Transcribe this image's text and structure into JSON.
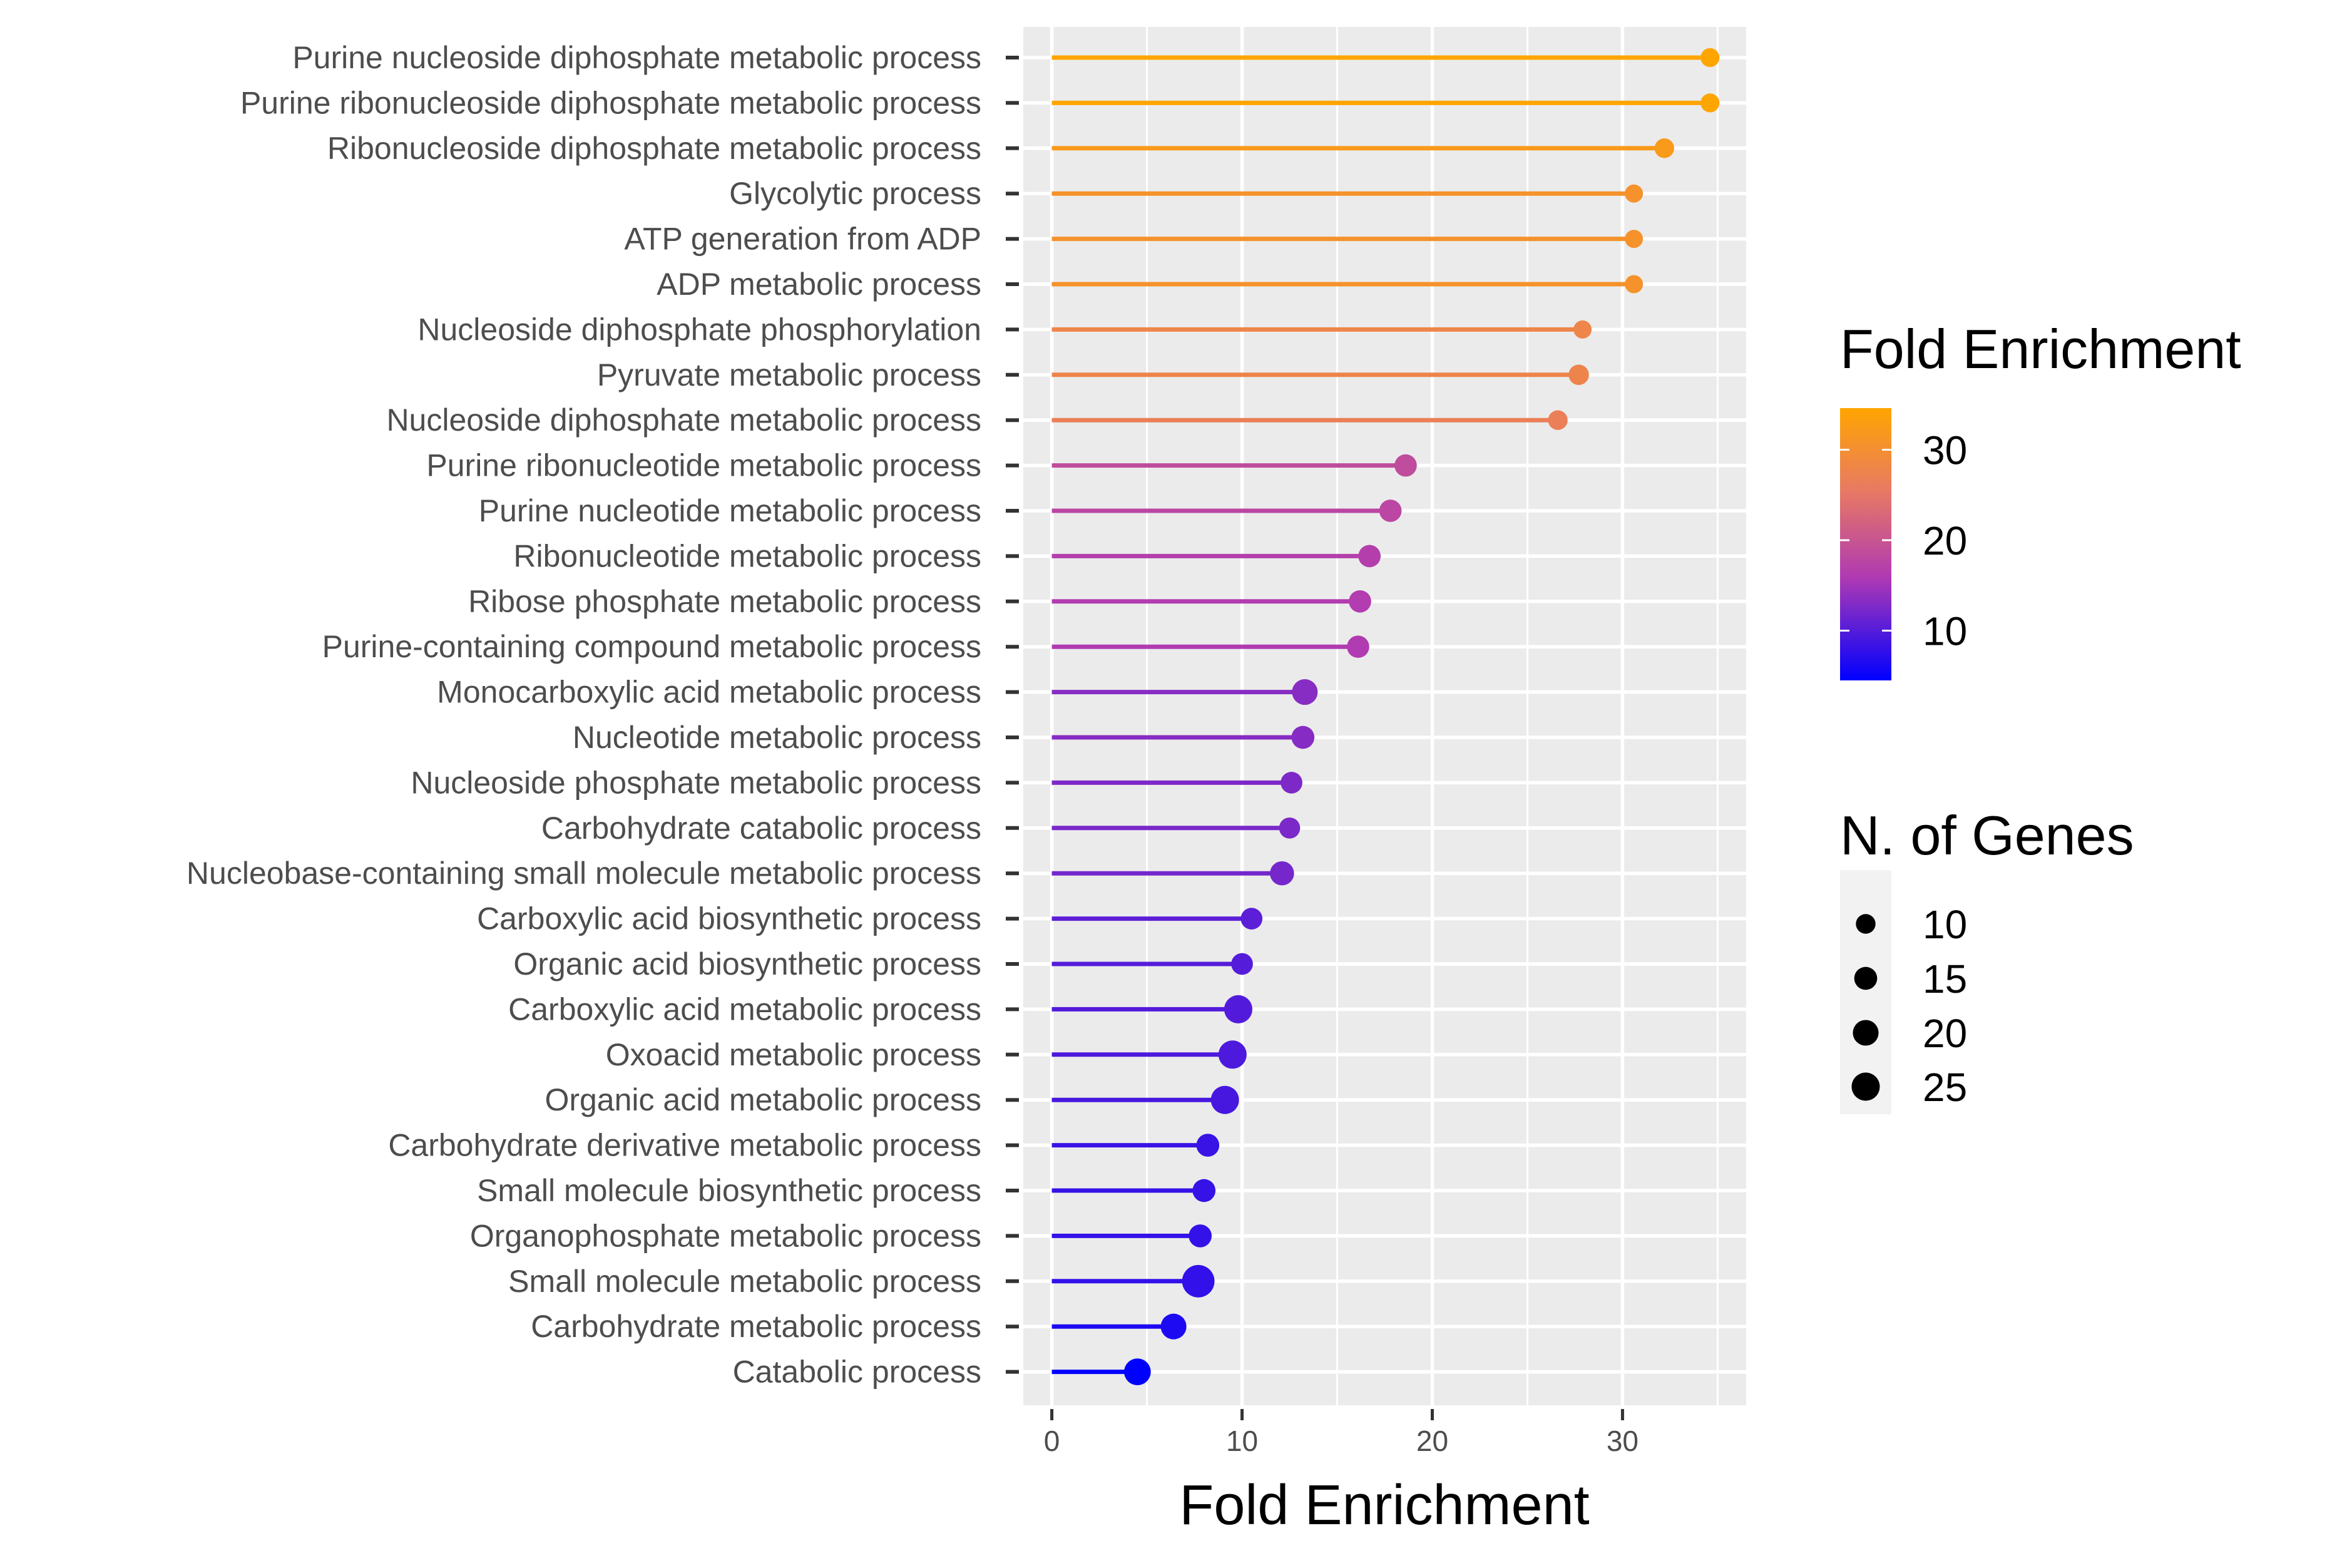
{
  "chart_data": {
    "type": "lollipop",
    "xlabel": "Fold Enrichment",
    "ylabel": "",
    "xlim": [
      -1.5,
      36.5
    ],
    "x_ticks": [
      0,
      10,
      20,
      30
    ],
    "grid": true,
    "categories": [
      "Purine nucleoside diphosphate metabolic process",
      "Purine ribonucleoside diphosphate metabolic process",
      "Ribonucleoside diphosphate metabolic process",
      "Glycolytic process",
      "ATP generation from ADP",
      "ADP metabolic process",
      "Nucleoside diphosphate phosphorylation",
      "Pyruvate metabolic process",
      "Nucleoside diphosphate metabolic process",
      "Purine ribonucleotide metabolic process",
      "Purine nucleotide metabolic process",
      "Ribonucleotide metabolic process",
      "Ribose phosphate metabolic process",
      "Purine-containing compound metabolic process",
      "Monocarboxylic acid metabolic process",
      "Nucleotide metabolic process",
      "Nucleoside phosphate metabolic process",
      "Carbohydrate catabolic process",
      "Nucleobase-containing small molecule metabolic process",
      "Carboxylic acid biosynthetic process",
      "Organic acid biosynthetic process",
      "Carboxylic acid metabolic process",
      "Oxoacid metabolic process",
      "Organic acid metabolic process",
      "Carbohydrate derivative metabolic process",
      "Small molecule biosynthetic process",
      "Organophosphate metabolic process",
      "Small molecule metabolic process",
      "Carbohydrate metabolic process",
      "Catabolic process"
    ],
    "fold_enrichment": [
      34.6,
      34.6,
      32.2,
      30.6,
      30.6,
      30.6,
      27.9,
      27.7,
      26.6,
      18.6,
      17.8,
      16.7,
      16.2,
      16.1,
      13.3,
      13.2,
      12.6,
      12.5,
      12.1,
      10.5,
      10.0,
      9.8,
      9.5,
      9.1,
      8.2,
      8.0,
      7.8,
      7.7,
      6.4,
      4.5
    ],
    "n_genes": [
      9,
      9,
      10,
      8,
      8,
      8,
      8,
      11,
      10,
      14,
      14,
      14,
      14,
      14,
      20,
      15,
      13,
      12,
      17,
      13,
      13,
      25,
      25,
      25,
      15,
      15,
      15,
      35,
      20,
      22
    ],
    "color_legend": {
      "title": "Fold Enrichment",
      "ticks": [
        10,
        20,
        30
      ],
      "range": [
        4.5,
        34.6
      ],
      "low_color": "#0000ff",
      "high_color": "#ffa500"
    },
    "size_legend": {
      "title": "N. of Genes",
      "values": [
        10,
        15,
        20,
        25
      ]
    }
  }
}
